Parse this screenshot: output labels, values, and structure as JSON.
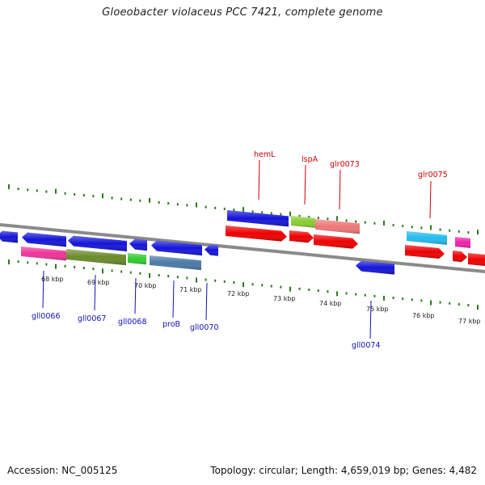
{
  "title": "Gloeobacter violaceus PCC 7421, complete genome",
  "footer": {
    "accession": "Accession: NC_005125",
    "summary": "Topology: circular; Length: 4,659,019 bp; Genes: 4,482"
  },
  "ticks": [
    {
      "label": "68 kbp"
    },
    {
      "label": "69 kbp"
    },
    {
      "label": "70 kbp"
    },
    {
      "label": "71 kbp"
    },
    {
      "label": "72 kbp"
    },
    {
      "label": "73 kbp"
    },
    {
      "label": "74 kbp"
    },
    {
      "label": "75 kbp"
    },
    {
      "label": "76 kbp"
    },
    {
      "label": "77 kbp"
    }
  ],
  "labels_top": [
    {
      "text": "hemL"
    },
    {
      "text": "lspA"
    },
    {
      "text": "glr0073"
    },
    {
      "text": "glr0075"
    }
  ],
  "labels_bottom": [
    {
      "text": "gll0066"
    },
    {
      "text": "gll0067"
    },
    {
      "text": "gll0068"
    },
    {
      "text": "proB"
    },
    {
      "text": "gll0070"
    },
    {
      "text": "gll0074"
    }
  ],
  "colors": {
    "forward_label": "#cc0000",
    "reverse_label": "#1010bb",
    "tick": "#2a7a1a",
    "backbone": "#808080",
    "gene_blue": "#1515d8",
    "gene_red": "#ee0000",
    "gene_pink": "#ee3399",
    "gene_olive": "#6a8a2a",
    "gene_green": "#33cc33",
    "gene_steel": "#4a7aa8",
    "gene_lime": "#88cc33",
    "gene_salmon": "#ee7777",
    "gene_cyan": "#22bbee",
    "gene_magenta": "#ee22aa"
  }
}
